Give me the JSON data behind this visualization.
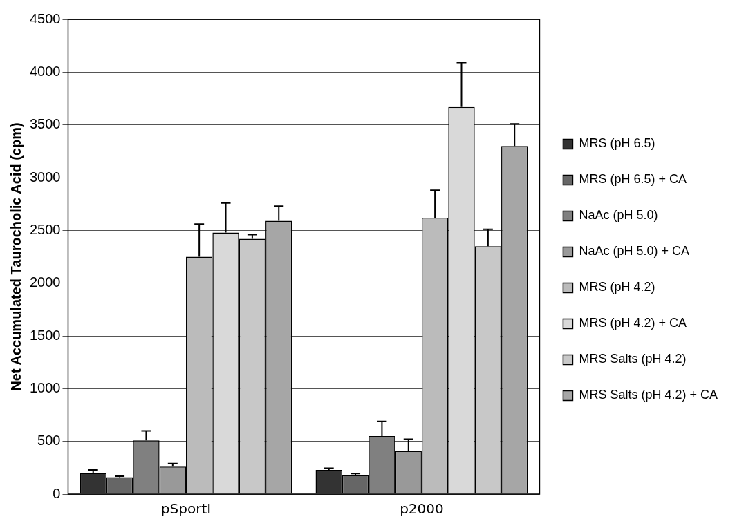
{
  "chart_data": {
    "type": "bar",
    "ylabel": "Net Accumulated Taurocholic Acid (cpm)",
    "categories": [
      "pSportI",
      "p2000"
    ],
    "series": [
      {
        "name": "MRS (pH 6.5)",
        "color": "#333333",
        "values": [
          200,
          230
        ],
        "errors": [
          30,
          15
        ]
      },
      {
        "name": "MRS (pH 6.5) + CA",
        "color": "#666666",
        "values": [
          160,
          180
        ],
        "errors": [
          10,
          15
        ]
      },
      {
        "name": "NaAc (pH 5.0)",
        "color": "#808080",
        "values": [
          510,
          550
        ],
        "errors": [
          90,
          140
        ]
      },
      {
        "name": "NaAc (pH 5.0) + CA",
        "color": "#999999",
        "values": [
          260,
          410
        ],
        "errors": [
          30,
          110
        ]
      },
      {
        "name": "MRS (pH 4.2)",
        "color": "#bbbbbb",
        "values": [
          2250,
          2620
        ],
        "errors": [
          310,
          260
        ]
      },
      {
        "name": "MRS (pH 4.2) + CA",
        "color": "#d9d9d9",
        "values": [
          2480,
          3670
        ],
        "errors": [
          280,
          420
        ]
      },
      {
        "name": "MRS Salts (pH 4.2)",
        "color": "#c8c8c8",
        "values": [
          2420,
          2350
        ],
        "errors": [
          40,
          160
        ]
      },
      {
        "name": "MRS Salts (pH 4.2) + CA",
        "color": "#a6a6a6",
        "values": [
          2590,
          3300
        ],
        "errors": [
          140,
          210
        ]
      }
    ],
    "ylim": [
      0,
      4500
    ],
    "yticks": [
      0,
      500,
      1000,
      1500,
      2000,
      2500,
      3000,
      3500,
      4000,
      4500
    ],
    "grid": "y",
    "legend": "right"
  }
}
